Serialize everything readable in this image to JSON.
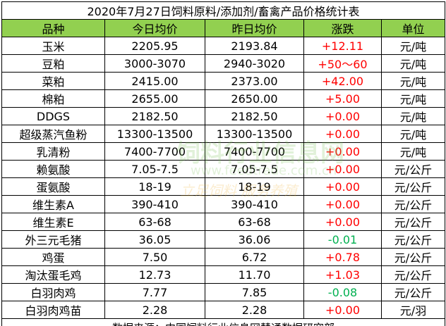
{
  "title": "2020年7月27日饲料原料/添加剂/畜禽产品价格统计表",
  "table": {
    "header": [
      "品种",
      "今日均价",
      "昨日均价",
      "涨跌",
      "单位"
    ],
    "rows": [
      [
        "玉米",
        "2205.95",
        "2193.84",
        "+12.11",
        "元/吨"
      ],
      [
        "豆粕",
        "3000-3070",
        "2940-3020",
        "+50～60",
        "元/吨"
      ],
      [
        "菜粕",
        "2415.00",
        "2373.00",
        "+42.00",
        "元/吨"
      ],
      [
        "棉粕",
        "2655.00",
        "2650.00",
        "+5.00",
        "元/吨"
      ],
      [
        "DDGS",
        "2182.50",
        "2182.50",
        "+0.00",
        "元/吨"
      ],
      [
        "超级蒸汽鱼粉",
        "13300-13500",
        "13300-13500",
        "+0.00",
        "元/吨"
      ],
      [
        "乳清粉",
        "7400-7700",
        "7400-7700",
        "+0.00",
        "元/吨"
      ],
      [
        "赖氨酸",
        "7.05-7.5",
        "7.05-7.5",
        "+0.00",
        "元/公斤"
      ],
      [
        "蛋氨酸",
        "18-19",
        "18-19",
        "+0.00",
        "元/公斤"
      ],
      [
        "维生素A",
        "390-410",
        "390-410",
        "+0.00",
        "元/公斤"
      ],
      [
        "维生素E",
        "63-68",
        "63-68",
        "+0.00",
        "元/公斤"
      ],
      [
        "外三元毛猪",
        "36.05",
        "36.06",
        "-0.01",
        "元/公斤"
      ],
      [
        "鸡蛋",
        "7.50",
        "6.72",
        "+0.78",
        "元/公斤"
      ],
      [
        "淘汰蛋毛鸡",
        "12.73",
        "11.70",
        "+1.03",
        "元/公斤"
      ],
      [
        "白羽肉鸡",
        "7.77",
        "7.85",
        "-0.08",
        "元/公斤"
      ],
      [
        "白羽肉鸡苗",
        "2.28",
        "2.28",
        "+0.00",
        "元/羽"
      ]
    ],
    "footer": "数据来源：中国饲料行业信息网慧通数据研究部"
  },
  "watermark": {
    "name": "饲料行业信息网",
    "url": "www.feedtrade.com.cn",
    "slogan": "立足饲料 服务养殖"
  }
}
